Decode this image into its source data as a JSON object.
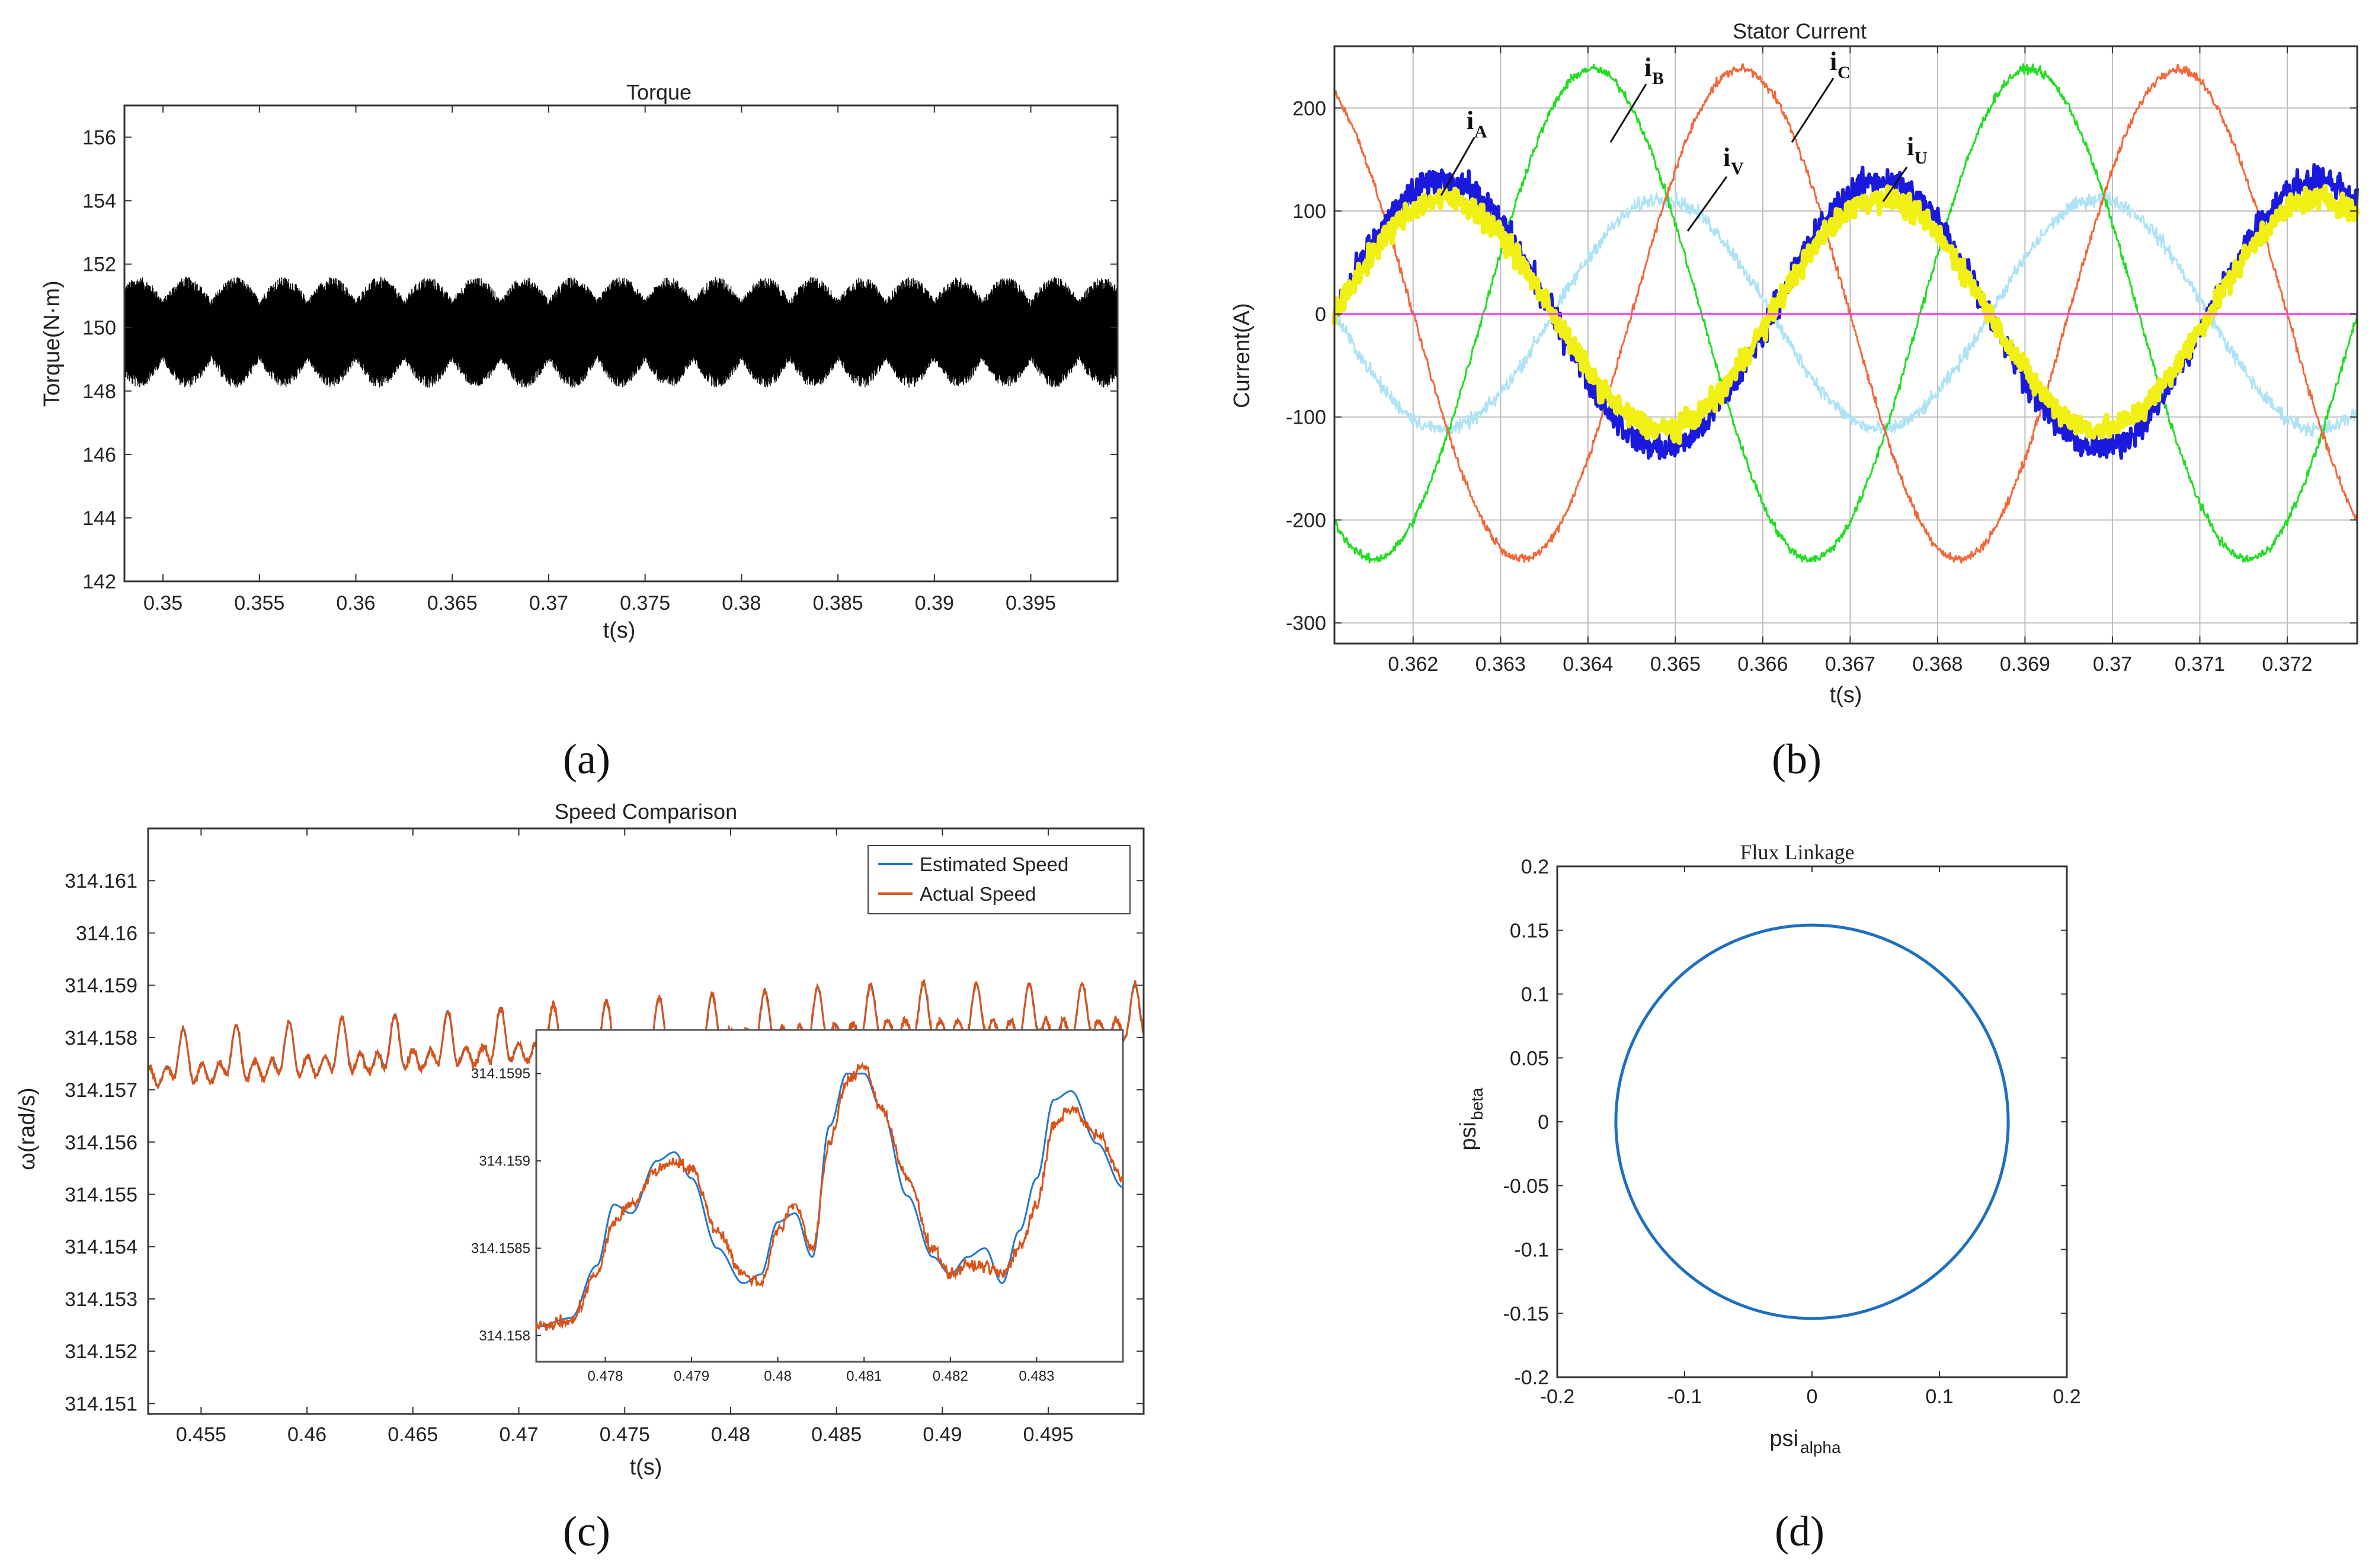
{
  "chart_data": [
    {
      "id": "a",
      "type": "line",
      "title": "Torque",
      "xlabel": "t(s)",
      "ylabel": "Torque(N·m)",
      "xlim": [
        0.348,
        0.3995
      ],
      "ylim": [
        142,
        157
      ],
      "xticks": [
        0.35,
        0.355,
        0.36,
        0.365,
        0.37,
        0.375,
        0.38,
        0.385,
        0.39,
        0.395
      ],
      "xtick_labels": [
        "0.35",
        "0.355",
        "0.36",
        "0.365",
        "0.37",
        "0.375",
        "0.38",
        "0.385",
        "0.39",
        "0.395"
      ],
      "yticks": [
        142,
        144,
        146,
        148,
        150,
        152,
        154,
        156
      ],
      "ytick_labels": [
        "142",
        "144",
        "146",
        "148",
        "150",
        "152",
        "154",
        "156"
      ],
      "series": [
        {
          "name": "Torque",
          "color": "#000000",
          "mean": 150,
          "band_min": 148.5,
          "band_max": 151.6,
          "ripple_period": 0.0025
        }
      ],
      "panel_label": "(a)"
    },
    {
      "id": "b",
      "type": "line",
      "title": "Stator Current",
      "xlabel": "t(s)",
      "ylabel": "Current(A)",
      "xlim": [
        0.3611,
        0.3728
      ],
      "ylim": [
        -320,
        260
      ],
      "grid": true,
      "xticks": [
        0.362,
        0.363,
        0.364,
        0.365,
        0.366,
        0.367,
        0.368,
        0.369,
        0.37,
        0.371,
        0.372
      ],
      "xtick_labels": [
        "0.362",
        "0.363",
        "0.364",
        "0.365",
        "0.366",
        "0.367",
        "0.368",
        "0.369",
        "0.37",
        "0.371",
        "0.372"
      ],
      "yticks": [
        -300,
        -200,
        -100,
        0,
        100,
        200
      ],
      "ytick_labels": [
        "-300",
        "-200",
        "-100",
        "0",
        "100",
        "200"
      ],
      "series": [
        {
          "name": "iA",
          "color": "#1a1adf",
          "amplitude": 130,
          "period": 0.005,
          "zero_rise": 0.3611,
          "noise": 10
        },
        {
          "name": "iU",
          "color": "#f0f014",
          "amplitude": 112,
          "period": 0.005,
          "zero_rise": 0.3611,
          "noise": 8
        },
        {
          "name": "iB",
          "color": "#22dd22",
          "amplitude": 238,
          "period": 0.005,
          "zero_rise": 0.3628,
          "noise": 3
        },
        {
          "name": "iC",
          "color": "#f2683a",
          "amplitude": 238,
          "period": 0.005,
          "zero_rise": 0.3645,
          "noise": 3
        },
        {
          "name": "iV",
          "color": "#aee3f5",
          "amplitude": 112,
          "period": 0.005,
          "zero_rise": 0.3636,
          "noise": 5
        },
        {
          "name": "zero",
          "color": "#ff33ee",
          "value": 0
        }
      ],
      "annotations": [
        {
          "main": "i",
          "sub": "A"
        },
        {
          "main": "i",
          "sub": "B"
        },
        {
          "main": "i",
          "sub": "C"
        },
        {
          "main": "i",
          "sub": "V"
        },
        {
          "main": "i",
          "sub": "U"
        }
      ],
      "panel_label": "(b)"
    },
    {
      "id": "c",
      "type": "line",
      "title": "Speed Comparison",
      "xlabel": "t(s)",
      "ylabel": "ω(rad/s)",
      "xlim": [
        0.4525,
        0.4995
      ],
      "ylim": [
        314.1508,
        314.162
      ],
      "xticks": [
        0.455,
        0.46,
        0.465,
        0.47,
        0.475,
        0.48,
        0.485,
        0.49,
        0.495
      ],
      "xtick_labels": [
        "0.455",
        "0.46",
        "0.465",
        "0.47",
        "0.475",
        "0.48",
        "0.485",
        "0.49",
        "0.495"
      ],
      "yticks": [
        314.151,
        314.152,
        314.153,
        314.154,
        314.155,
        314.156,
        314.157,
        314.158,
        314.159,
        314.16,
        314.161
      ],
      "ytick_labels": [
        "314.151",
        "314.152",
        "314.153",
        "314.154",
        "314.155",
        "314.156",
        "314.157",
        "314.158",
        "314.159",
        "314.16",
        "314.161"
      ],
      "series": [
        {
          "name": "Estimated Speed",
          "color": "#1f77d0"
        },
        {
          "name": "Actual Speed",
          "color": "#d95319"
        }
      ],
      "legend": [
        "Estimated Speed",
        "Actual Speed"
      ],
      "legend_position": "top-right",
      "inset": {
        "xlim": [
          0.4772,
          0.484
        ],
        "ylim": [
          314.15785,
          314.15975
        ],
        "xticks": [
          0.478,
          0.479,
          0.48,
          0.481,
          0.482,
          0.483
        ],
        "xtick_labels": [
          "0.478",
          "0.479",
          "0.48",
          "0.481",
          "0.482",
          "0.483"
        ],
        "yticks": [
          314.158,
          314.1585,
          314.159,
          314.1595
        ],
        "ytick_labels": [
          "314.158",
          "314.1585",
          "314.159",
          "314.1595"
        ],
        "estimated_points": [
          [
            0.4772,
            314.15805
          ],
          [
            0.4776,
            314.1581
          ],
          [
            0.4779,
            314.1584
          ],
          [
            0.4781,
            314.15875
          ],
          [
            0.4783,
            314.1587
          ],
          [
            0.4786,
            314.159
          ],
          [
            0.4788,
            314.15905
          ],
          [
            0.479,
            314.1589
          ],
          [
            0.4793,
            314.1585
          ],
          [
            0.4796,
            314.1583
          ],
          [
            0.4798,
            314.15835
          ],
          [
            0.48,
            314.15865
          ],
          [
            0.4802,
            314.1587
          ],
          [
            0.4804,
            314.15845
          ],
          [
            0.4806,
            314.1592
          ],
          [
            0.4808,
            314.1595
          ],
          [
            0.481,
            314.1595
          ],
          [
            0.4812,
            314.1593
          ],
          [
            0.4815,
            314.1588
          ],
          [
            0.4818,
            314.15845
          ],
          [
            0.482,
            314.15835
          ],
          [
            0.4822,
            314.15845
          ],
          [
            0.4824,
            314.1585
          ],
          [
            0.4826,
            314.1583
          ],
          [
            0.4828,
            314.1586
          ],
          [
            0.483,
            314.1589
          ],
          [
            0.4832,
            314.15935
          ],
          [
            0.4834,
            314.1594
          ],
          [
            0.4837,
            314.1591
          ],
          [
            0.484,
            314.15885
          ]
        ],
        "actual_points": [
          [
            0.4772,
            314.15805
          ],
          [
            0.4776,
            314.15808
          ],
          [
            0.4779,
            314.15835
          ],
          [
            0.4781,
            314.15865
          ],
          [
            0.4783,
            314.15875
          ],
          [
            0.4786,
            314.15895
          ],
          [
            0.4788,
            314.159
          ],
          [
            0.479,
            314.15895
          ],
          [
            0.4793,
            314.1586
          ],
          [
            0.4796,
            314.15835
          ],
          [
            0.4798,
            314.1583
          ],
          [
            0.48,
            314.1586
          ],
          [
            0.4802,
            314.15875
          ],
          [
            0.4804,
            314.1585
          ],
          [
            0.4806,
            314.1591
          ],
          [
            0.4808,
            314.15945
          ],
          [
            0.481,
            314.15955
          ],
          [
            0.4812,
            314.1593
          ],
          [
            0.4815,
            314.1589
          ],
          [
            0.4818,
            314.1585
          ],
          [
            0.482,
            314.15835
          ],
          [
            0.4822,
            314.1584
          ],
          [
            0.4824,
            314.1584
          ],
          [
            0.4826,
            314.15835
          ],
          [
            0.4828,
            314.1585
          ],
          [
            0.483,
            314.15875
          ],
          [
            0.4832,
            314.1592
          ],
          [
            0.4834,
            314.1593
          ],
          [
            0.4837,
            314.15915
          ],
          [
            0.484,
            314.1589
          ]
        ]
      },
      "panel_label": "(c)"
    },
    {
      "id": "d",
      "type": "line",
      "title": "Flux Linkage",
      "xlabel": "psi",
      "xlabel_sub": "alpha",
      "ylabel": "psi",
      "ylabel_sub": "beta",
      "xlim": [
        -0.2,
        0.2
      ],
      "ylim": [
        -0.2,
        0.2
      ],
      "xticks": [
        -0.2,
        -0.1,
        0,
        0.1,
        0.2
      ],
      "xtick_labels": [
        "-0.2",
        "-0.1",
        "0",
        "0.1",
        "0.2"
      ],
      "yticks": [
        -0.2,
        -0.15,
        -0.1,
        -0.05,
        0,
        0.05,
        0.1,
        0.15,
        0.2
      ],
      "ytick_labels": [
        "-0.2",
        "-0.15",
        "-0.1",
        "-0.05",
        "0",
        "0.05",
        "0.1",
        "0.15",
        "0.2"
      ],
      "series": [
        {
          "name": "flux circle",
          "color": "#1f6fbf",
          "radius": 0.154,
          "center": [
            0,
            0
          ]
        }
      ],
      "panel_label": "(d)"
    }
  ]
}
